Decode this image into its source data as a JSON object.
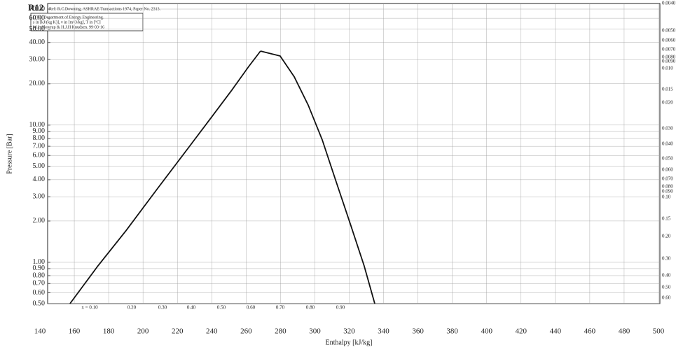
{
  "chart_data": {
    "type": "line",
    "title": "R12",
    "subtitle": "Ref: R.C.Downing, ASHRAE Transactions 1974, Paper No. 2313.",
    "notes": [
      "DTU, Department of Energy Engineering.",
      "s in [kJ/(kg K)], v in [m^3/kg], T in [ºC]",
      "M.J. Skovrup & H.J.H Knudsen. 99-03-16"
    ],
    "x_label": "Enthalpy [kJ/kg]",
    "y_label": "Pressure [Bar]",
    "xlim": [
      140,
      500
    ],
    "xticks": [
      140,
      160,
      180,
      200,
      220,
      240,
      260,
      280,
      300,
      320,
      340,
      360,
      380,
      400,
      420,
      440,
      460,
      480,
      500
    ],
    "ylim": [
      0.5,
      70
    ],
    "log_y": true,
    "grid": true,
    "yticks": [
      {
        "value": 70,
        "label": "70.00"
      },
      {
        "value": 60,
        "label": "60.00"
      },
      {
        "value": 50,
        "label": "50.00"
      },
      {
        "value": 40,
        "label": "40.00"
      },
      {
        "value": 30,
        "label": "30.00"
      },
      {
        "value": 20,
        "label": "20.00"
      },
      {
        "value": 10,
        "label": "10.00"
      },
      {
        "value": 9,
        "label": "9.00"
      },
      {
        "value": 8,
        "label": "8.00"
      },
      {
        "value": 7,
        "label": "7.00"
      },
      {
        "value": 6,
        "label": "6.00"
      },
      {
        "value": 5,
        "label": "5.00"
      },
      {
        "value": 4,
        "label": "4.00"
      },
      {
        "value": 3,
        "label": "3.00"
      },
      {
        "value": 2,
        "label": "2.00"
      },
      {
        "value": 1,
        "label": "1.00"
      },
      {
        "value": 0.9,
        "label": "0.90"
      },
      {
        "value": 0.8,
        "label": "0.80"
      },
      {
        "value": 0.7,
        "label": "0.70"
      },
      {
        "value": 0.6,
        "label": "0.60"
      },
      {
        "value": 0.5,
        "label": "0.50"
      }
    ],
    "series": [
      {
        "color": "#111",
        "x": [
          157.5,
          173.8,
          190.1,
          208.9,
          226.8,
          239.1,
          251.3,
          261.5,
          268.4
        ],
        "values": [
          0.5,
          0.944,
          1.7,
          3.51,
          6.93,
          11.1,
          17.7,
          26.7,
          34.6
        ]
      },
      {
        "color": "#111",
        "x": [
          268.4,
          279.8,
          288.0,
          296.1,
          304.3,
          312.4,
          320.6,
          328.7,
          334.9
        ],
        "values": [
          34.6,
          31.9,
          22.5,
          14.0,
          7.8,
          3.86,
          1.91,
          0.944,
          0.5
        ]
      }
    ],
    "quality_labels": [
      "x = 0.10",
      "0.20",
      "0.30",
      "0.40",
      "0.50",
      "0.60",
      "0.70",
      "0.80",
      "0.90"
    ],
    "volume_labels": [
      "0.0040",
      "0.0050",
      "0.0060",
      "0.0070",
      "0.0080",
      "0.0090",
      "0.010",
      "0.015",
      "0.020",
      "0.030",
      "0.040",
      "0.050",
      "0.060",
      "0.070",
      "0.080",
      "0.090",
      "0.10",
      "0.15",
      "0.20",
      "0.30",
      "0.40",
      "0.50",
      "0.60"
    ]
  }
}
